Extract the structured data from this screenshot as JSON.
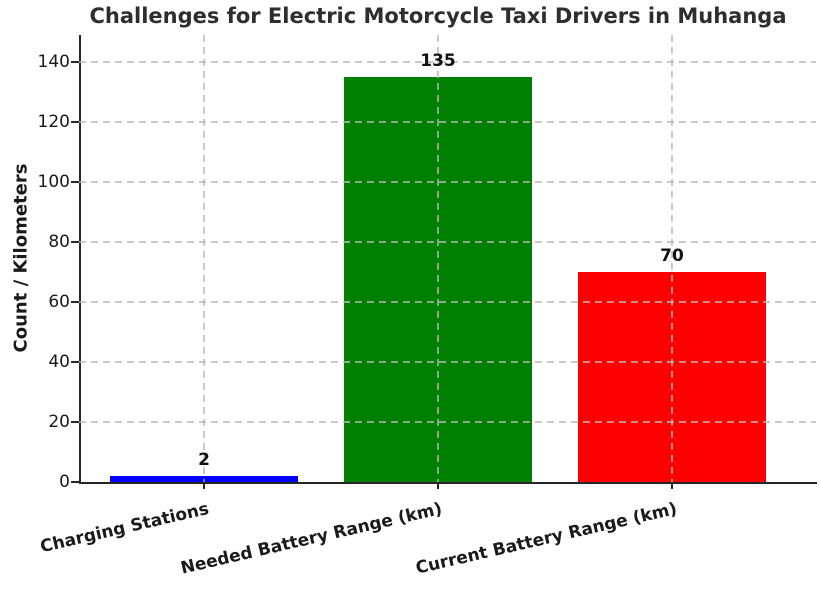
{
  "chart_data": {
    "type": "bar",
    "title": "Challenges for Electric Motorcycle Taxi Drivers in Muhanga",
    "ylabel": "Count / Kilometers",
    "xlabel": "",
    "categories": [
      "Charging Stations",
      "Needed Battery Range (km)",
      "Current Battery Range (km)"
    ],
    "values": [
      2,
      135,
      70
    ],
    "value_labels": [
      "2",
      "135",
      "70"
    ],
    "bar_colors": [
      "#0000ff",
      "#008000",
      "#ff0000"
    ],
    "yticks": [
      0,
      20,
      40,
      60,
      80,
      100,
      120,
      140
    ],
    "ylim": [
      0,
      149
    ],
    "grid": "dashed gridlines, horizontal and vertical, light gray, drawn over bars",
    "legend": "none",
    "xtick_rotation_deg": 13,
    "text_color": "#1a1a1a",
    "axis_color": "#262626"
  }
}
